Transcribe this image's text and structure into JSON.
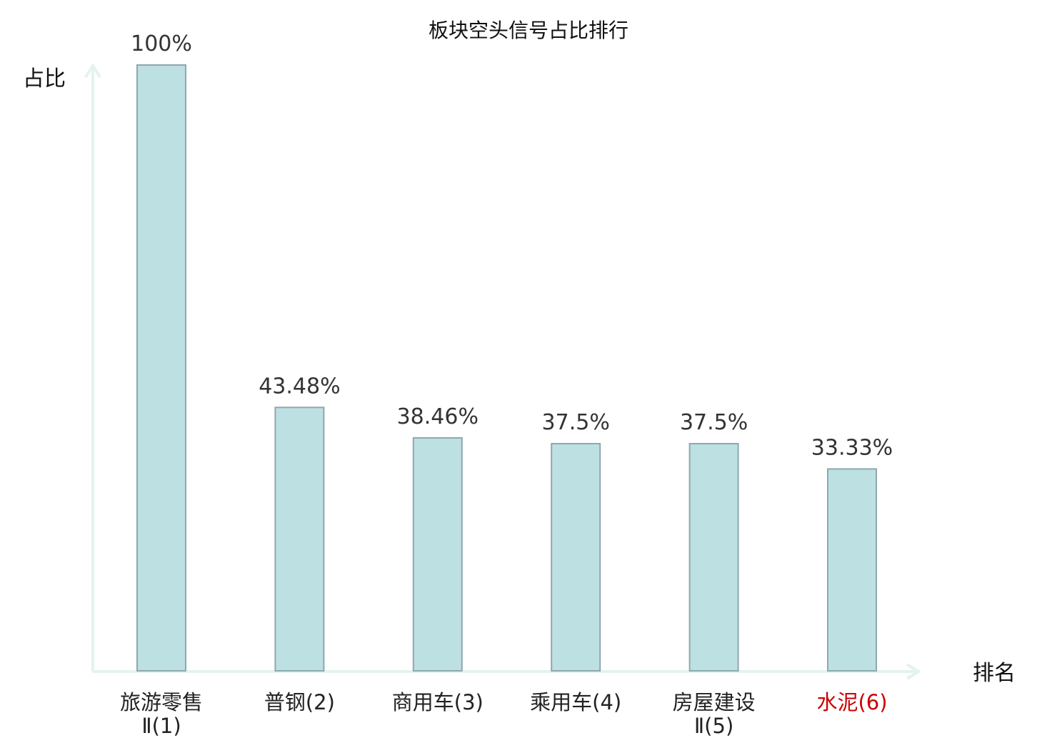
{
  "chart_data": {
    "type": "bar",
    "title": "板块空头信号占比排行",
    "ylabel": "占比",
    "xlabel": "排名",
    "categories": [
      [
        "旅游零售",
        "Ⅱ(1)"
      ],
      [
        "普钢(2)"
      ],
      [
        "商用车(3)"
      ],
      [
        "乘用车(4)"
      ],
      [
        "房屋建设",
        "Ⅱ(5)"
      ],
      [
        "水泥(6)"
      ]
    ],
    "values": [
      100,
      43.48,
      38.46,
      37.5,
      37.5,
      33.33
    ],
    "value_labels": [
      "100%",
      "43.48%",
      "38.46%",
      "37.5%",
      "37.5%",
      "33.33%"
    ],
    "highlight_index": 5,
    "ylim": [
      0,
      100
    ],
    "grid": false,
    "colors": {
      "bar_fill": "#bde0e3",
      "bar_stroke": "#8ea8ad",
      "axis": "#e3f3ef",
      "highlight_text": "#cc0000"
    }
  }
}
